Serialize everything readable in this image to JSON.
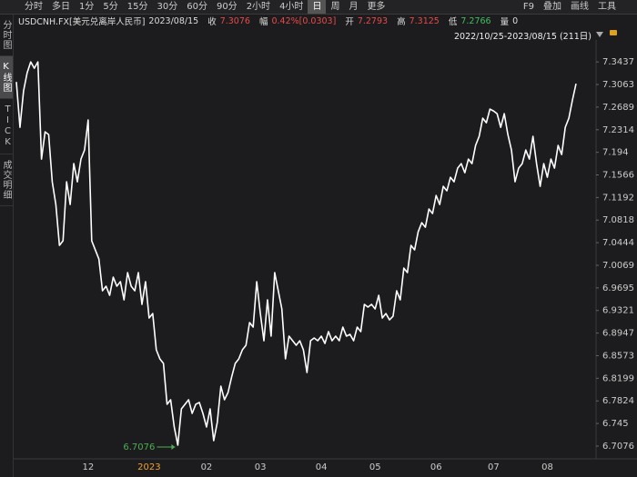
{
  "toolbar": {
    "left": [
      "分时",
      "多日",
      "1分",
      "5分",
      "15分",
      "30分",
      "60分",
      "90分",
      "2小时",
      "4小时",
      "日",
      "周",
      "月",
      "更多"
    ],
    "selected": 10,
    "right": [
      "F9",
      "叠加",
      "画线",
      "工具"
    ]
  },
  "header": [
    {
      "text": "USDCNH.FX[美元兑离岸人民币]",
      "color": "#dddddd"
    },
    {
      "text": "2023/08/15",
      "color": "#dddddd"
    },
    {
      "text": "收",
      "color": "#dddddd"
    },
    {
      "text": "7.3076",
      "color": "#e84a4a"
    },
    {
      "text": "幅",
      "color": "#dddddd"
    },
    {
      "text": "0.42%[0.0303]",
      "color": "#e84a4a"
    },
    {
      "text": "开",
      "color": "#dddddd"
    },
    {
      "text": "7.2793",
      "color": "#e84a4a"
    },
    {
      "text": "高",
      "color": "#dddddd"
    },
    {
      "text": "7.3125",
      "color": "#e84a4a"
    },
    {
      "text": "低",
      "color": "#dddddd"
    },
    {
      "text": "7.2766",
      "color": "#3fbf5f"
    },
    {
      "text": "量",
      "color": "#dddddd"
    },
    {
      "text": "0",
      "color": "#dddddd"
    }
  ],
  "range": "2022/10/25-2023/08/15 (211日)",
  "sidebar": {
    "tabs": [
      "分时图",
      "K线图",
      "TICK",
      "成交明细"
    ],
    "selected": 1
  },
  "chart_data": {
    "type": "line",
    "color": "#ffffff",
    "ylim": [
      6.694,
      7.374
    ],
    "yticks": [
      7.3437,
      7.3063,
      7.2689,
      7.2314,
      7.194,
      7.1566,
      7.1192,
      7.0818,
      7.0444,
      7.0069,
      6.9695,
      6.9321,
      6.8947,
      6.8573,
      6.8199,
      6.7824,
      6.745,
      6.7076
    ],
    "annotation": {
      "text": "6.7076",
      "color": "#4caf50"
    },
    "xtick_highlight": {
      "index": 37,
      "color": "#f0a030"
    },
    "categories": [
      null,
      null,
      null,
      null,
      null,
      null,
      null,
      null,
      null,
      null,
      null,
      null,
      null,
      null,
      null,
      null,
      null,
      null,
      null,
      null,
      "12",
      null,
      null,
      null,
      null,
      null,
      null,
      null,
      null,
      null,
      null,
      null,
      null,
      null,
      null,
      null,
      null,
      "2023",
      null,
      null,
      null,
      null,
      null,
      null,
      null,
      null,
      null,
      null,
      null,
      null,
      null,
      null,
      null,
      "02",
      null,
      null,
      null,
      null,
      null,
      null,
      null,
      null,
      null,
      null,
      null,
      null,
      null,
      null,
      "03",
      null,
      null,
      null,
      null,
      null,
      null,
      null,
      null,
      null,
      null,
      null,
      null,
      null,
      null,
      null,
      null,
      "04",
      null,
      null,
      null,
      null,
      null,
      null,
      null,
      null,
      null,
      null,
      null,
      null,
      null,
      null,
      "05",
      null,
      null,
      null,
      null,
      null,
      null,
      null,
      null,
      null,
      null,
      null,
      null,
      null,
      null,
      null,
      null,
      "06",
      null,
      null,
      null,
      null,
      null,
      null,
      null,
      null,
      null,
      null,
      null,
      null,
      null,
      null,
      null,
      "07",
      null,
      null,
      null,
      null,
      null,
      null,
      null,
      null,
      null,
      null,
      null,
      null,
      null,
      null,
      "08",
      null,
      null,
      null,
      null,
      null,
      null,
      null,
      null
    ],
    "values": [
      7.3106,
      7.2354,
      7.2956,
      7.3257,
      7.3437,
      7.3332,
      7.3437,
      7.1828,
      7.2279,
      7.2234,
      7.1452,
      7.1076,
      7.0399,
      7.0475,
      7.1452,
      7.1076,
      7.1753,
      7.1452,
      7.1828,
      7.1978,
      7.2475,
      7.0475,
      7.0324,
      7.0174,
      6.9647,
      6.9723,
      6.9572,
      6.9873,
      6.9723,
      6.9798,
      6.9497,
      6.9948,
      6.9723,
      6.9647,
      6.9948,
      6.9422,
      6.9798,
      6.9196,
      6.9271,
      6.867,
      6.852,
      6.8444,
      6.7768,
      6.7843,
      6.7392,
      6.7091,
      6.7692,
      6.7768,
      6.7843,
      6.7617,
      6.7768,
      6.7798,
      6.7617,
      6.7392,
      6.7692,
      6.7166,
      6.7467,
      6.8068,
      6.7843,
      6.7963,
      6.8219,
      6.8444,
      6.852,
      6.867,
      6.8745,
      6.9121,
      6.9046,
      6.9798,
      6.9271,
      6.882,
      6.9497,
      6.8896,
      6.9948,
      6.9647,
      6.9347,
      6.852,
      6.8896,
      6.882,
      6.8745,
      6.882,
      6.867,
      6.8294,
      6.882,
      6.8865,
      6.882,
      6.8896,
      6.8775,
      6.8971,
      6.882,
      6.8896,
      6.882,
      6.9046,
      6.8896,
      6.8926,
      6.882,
      6.9046,
      6.8971,
      6.9422,
      6.9377,
      6.9422,
      6.9347,
      6.9572,
      6.9196,
      6.9271,
      6.9166,
      6.9226,
      6.9647,
      6.9497,
      7.0023,
      6.9948,
      7.0399,
      7.0324,
      7.0625,
      7.0775,
      7.07,
      7.1001,
      7.0926,
      7.1226,
      7.1076,
      7.1377,
      7.1302,
      7.1527,
      7.1452,
      7.1678,
      7.1753,
      7.1602,
      7.1828,
      7.1753,
      7.2054,
      7.2204,
      7.2505,
      7.2429,
      7.2655,
      7.2625,
      7.258,
      7.2354,
      7.258,
      7.2234,
      7.1978,
      7.1452,
      7.1678,
      7.1753,
      7.1978,
      7.1828,
      7.2204,
      7.1753,
      7.1377,
      7.1753,
      7.1527,
      7.1828,
      7.1678,
      7.2054,
      7.1903,
      7.2354,
      7.2505,
      7.2805,
      7.3076
    ]
  }
}
